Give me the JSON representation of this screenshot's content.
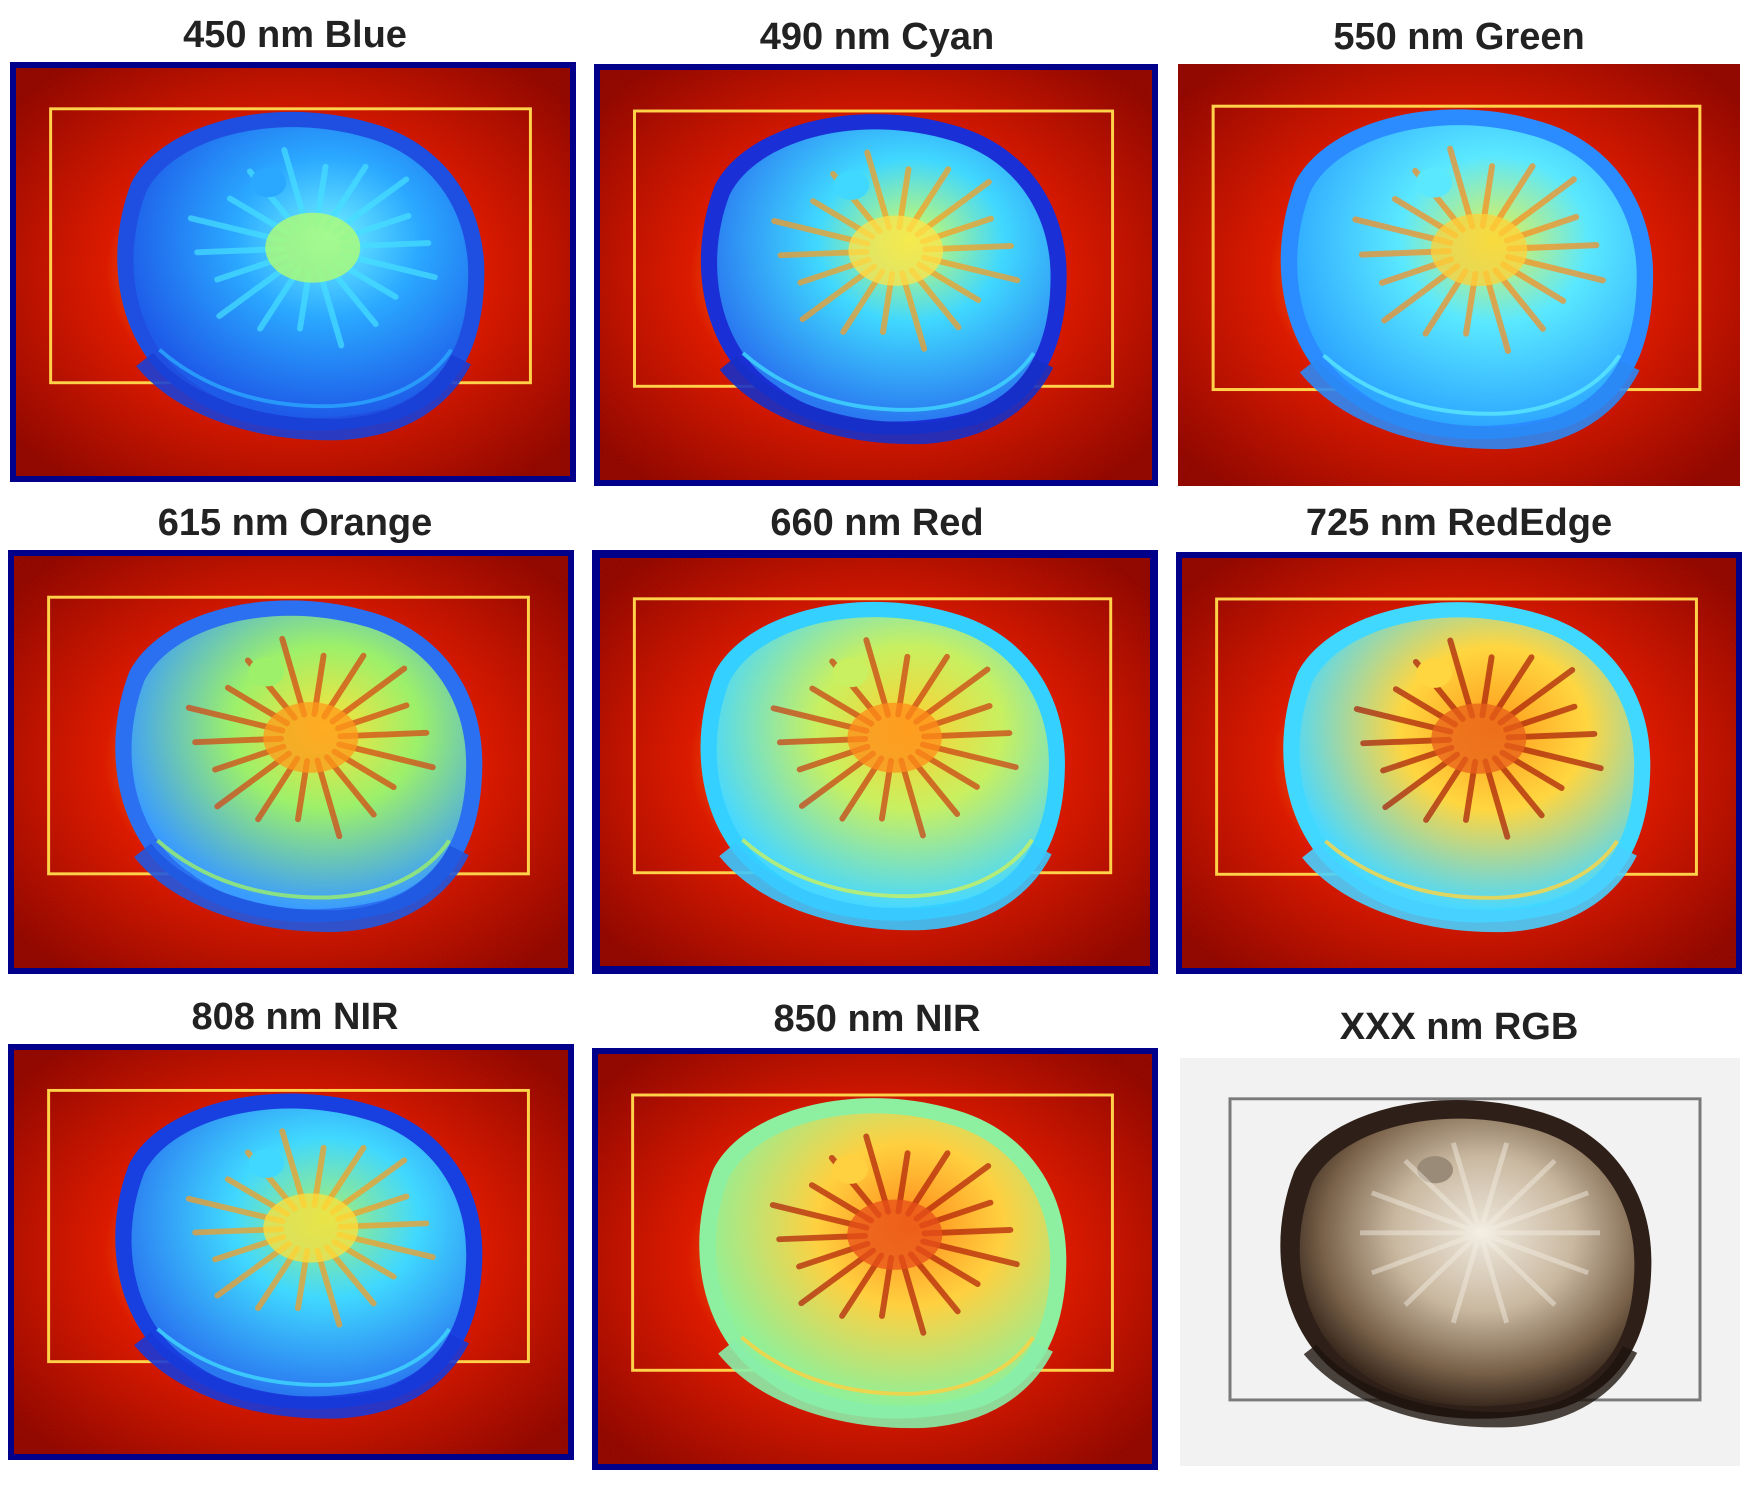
{
  "panels": [
    {
      "id": "p450",
      "title": "450 nm Blue",
      "style": "false-color",
      "variant": "blue"
    },
    {
      "id": "p490",
      "title": "490 nm Cyan",
      "style": "false-color",
      "variant": "cyan"
    },
    {
      "id": "p550",
      "title": "550 nm Green",
      "style": "false-color",
      "variant": "green"
    },
    {
      "id": "p615",
      "title": "615 nm Orange",
      "style": "false-color",
      "variant": "orange"
    },
    {
      "id": "p660",
      "title": "660 nm Red",
      "style": "false-color",
      "variant": "red"
    },
    {
      "id": "p725",
      "title": "725 nm RedEdge",
      "style": "false-color",
      "variant": "rededge"
    },
    {
      "id": "p808",
      "title": "808 nm NIR",
      "style": "false-color",
      "variant": "nir808"
    },
    {
      "id": "p850",
      "title": "850 nm NIR",
      "style": "false-color",
      "variant": "nir850"
    },
    {
      "id": "prgb",
      "title": "XXX nm RGB",
      "style": "rgb",
      "variant": "rgb"
    }
  ],
  "colors": {
    "frame_border": "#00008b",
    "background_hot": "#8b0000",
    "halo_red": "#e01500",
    "halo_orange": "#ff8c00",
    "halo_yellow": "#ffe34d",
    "box_outline": "#ffd24a",
    "rgb_background": "#f2f2f2",
    "rgb_box": "#7a7a7a"
  }
}
